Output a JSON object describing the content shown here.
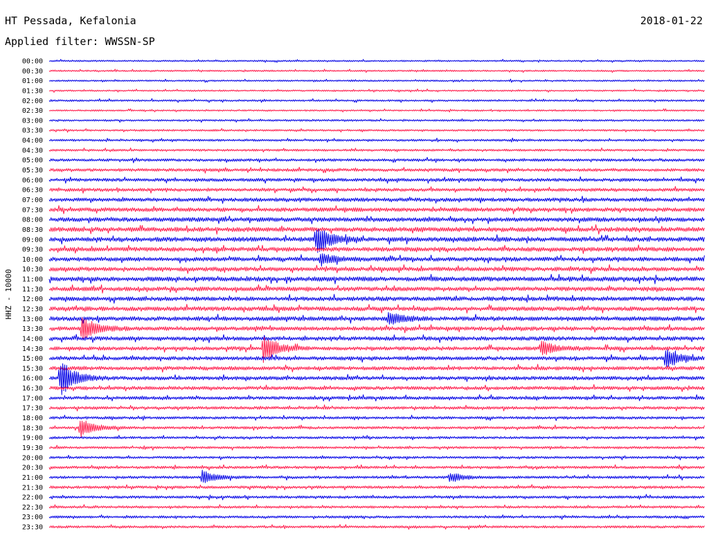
{
  "header": {
    "station": "HT Pessada, Kefalonia",
    "filter": "Applied filter: WWSSN-SP",
    "date": "2018-01-22"
  },
  "chart_data": {
    "type": "helicorder",
    "channel_label": "HHZ - 10000",
    "trace_colors": [
      "#0000e6",
      "#ff1a4a"
    ],
    "row_labels": [
      "00:00",
      "00:30",
      "01:00",
      "01:30",
      "02:00",
      "02:30",
      "03:00",
      "03:30",
      "04:00",
      "04:30",
      "05:00",
      "05:30",
      "06:00",
      "06:30",
      "07:00",
      "07:30",
      "08:00",
      "08:30",
      "09:00",
      "09:30",
      "10:00",
      "10:30",
      "11:00",
      "11:30",
      "12:00",
      "12:30",
      "13:00",
      "13:30",
      "14:00",
      "14:30",
      "15:00",
      "15:30",
      "16:00",
      "16:30",
      "17:00",
      "17:30",
      "18:00",
      "18:30",
      "19:00",
      "19:30",
      "20:00",
      "20:30",
      "21:00",
      "21:30",
      "22:00",
      "22:30",
      "23:00",
      "23:30"
    ],
    "noise_level": [
      0.3,
      0.3,
      0.3,
      0.3,
      0.35,
      0.3,
      0.35,
      0.35,
      0.4,
      0.4,
      0.5,
      0.55,
      0.6,
      0.6,
      0.7,
      0.75,
      0.8,
      0.85,
      0.85,
      0.8,
      0.8,
      0.8,
      0.85,
      0.8,
      0.8,
      0.8,
      0.8,
      0.75,
      0.75,
      0.7,
      0.7,
      0.7,
      0.7,
      0.65,
      0.6,
      0.55,
      0.5,
      0.5,
      0.45,
      0.45,
      0.45,
      0.5,
      0.5,
      0.5,
      0.5,
      0.45,
      0.45,
      0.45
    ],
    "events": [
      {
        "row": 18,
        "minute": 12.2,
        "amplitude": 3.0
      },
      {
        "row": 20,
        "minute": 12.4,
        "amplitude": 1.2
      },
      {
        "row": 26,
        "minute": 15.5,
        "amplitude": 1.4
      },
      {
        "row": 27,
        "minute": 1.5,
        "amplitude": 2.6
      },
      {
        "row": 29,
        "minute": 9.8,
        "amplitude": 3.0
      },
      {
        "row": 29,
        "minute": 22.5,
        "amplitude": 1.5
      },
      {
        "row": 30,
        "minute": 28.2,
        "amplitude": 2.0
      },
      {
        "row": 32,
        "minute": 0.5,
        "amplitude": 4.0
      },
      {
        "row": 37,
        "minute": 1.4,
        "amplitude": 2.0
      },
      {
        "row": 42,
        "minute": 7.0,
        "amplitude": 1.4
      },
      {
        "row": 42,
        "minute": 18.3,
        "amplitude": 1.0
      }
    ]
  }
}
